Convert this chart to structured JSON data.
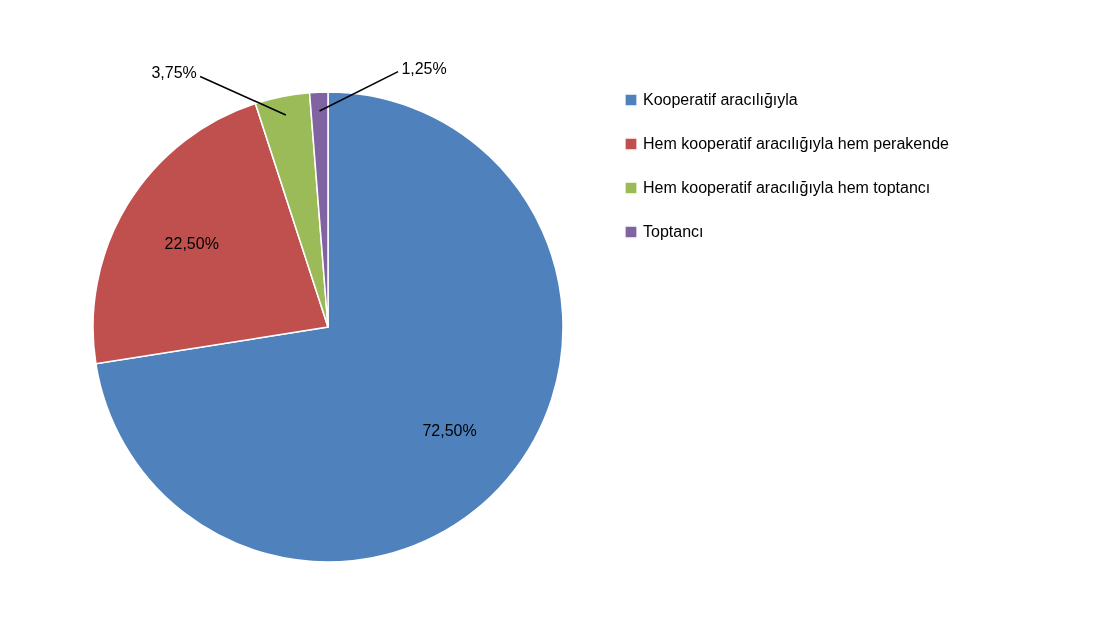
{
  "chart_data": {
    "type": "pie",
    "categories": [
      "Kooperatif aracılığıyla",
      "Hem kooperatif aracılığıyla hem perakende",
      "Hem kooperatif aracılığıyla hem toptancı",
      "Toptancı"
    ],
    "values": [
      72.5,
      22.5,
      3.75,
      1.25
    ],
    "colors": [
      "#4f81bd",
      "#c0504d",
      "#9bbb59",
      "#8064a2"
    ],
    "value_labels": [
      "72,50%",
      "22,50%",
      "3,75%",
      "1,25%"
    ],
    "legend": "right"
  }
}
